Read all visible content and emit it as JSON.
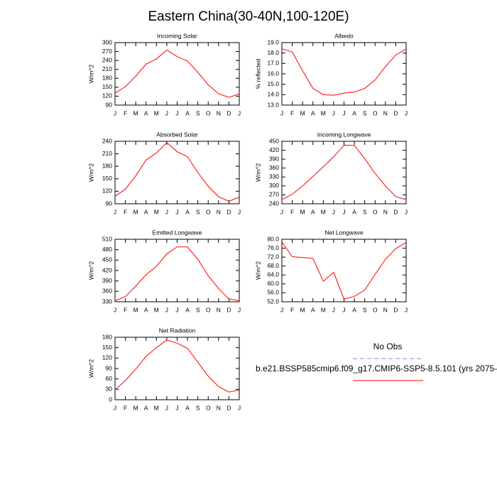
{
  "title": "Eastern China(30-40N,100-120E)",
  "chart_data": [
    {
      "type": "line",
      "title": "Incoming Solar",
      "ylabel": "W/m^2",
      "color": "#ff0000",
      "categories": [
        "J",
        "F",
        "M",
        "A",
        "M",
        "J",
        "J",
        "A",
        "S",
        "O",
        "N",
        "D",
        "J"
      ],
      "values": [
        130,
        152,
        187,
        228,
        245,
        275,
        253,
        238,
        200,
        158,
        128,
        116,
        128
      ],
      "ylim": [
        90,
        300
      ],
      "yticks": [
        90,
        120,
        150,
        180,
        210,
        240,
        270,
        300
      ]
    },
    {
      "type": "line",
      "title": "Albedo",
      "ylabel": "% reflected",
      "color": "#ff0000",
      "categories": [
        "J",
        "F",
        "M",
        "A",
        "M",
        "J",
        "J",
        "A",
        "S",
        "O",
        "N",
        "D",
        "J"
      ],
      "values": [
        18.4,
        18.1,
        16.3,
        14.6,
        14.0,
        13.95,
        14.15,
        14.25,
        14.6,
        15.4,
        16.7,
        17.8,
        18.4
      ],
      "ylim": [
        13,
        19
      ],
      "yticks": [
        {
          "value": 13,
          "label": "13.0"
        },
        {
          "value": 14,
          "label": "14.0"
        },
        {
          "value": 15,
          "label": "15.0"
        },
        {
          "value": 16,
          "label": "16.0"
        },
        {
          "value": 17,
          "label": "17.0"
        },
        {
          "value": 18,
          "label": "18.0"
        },
        {
          "value": 19,
          "label": "19.0"
        }
      ]
    },
    {
      "type": "line",
      "title": "Absorbed Solar",
      "ylabel": "W/m^2",
      "color": "#ff0000",
      "categories": [
        "J",
        "F",
        "M",
        "A",
        "M",
        "J",
        "J",
        "A",
        "S",
        "O",
        "N",
        "D",
        "J"
      ],
      "values": [
        108,
        125,
        157,
        195,
        212,
        237,
        215,
        203,
        165,
        132,
        107,
        96,
        106
      ],
      "ylim": [
        90,
        240
      ],
      "yticks": [
        90,
        120,
        150,
        180,
        210,
        240
      ]
    },
    {
      "type": "line",
      "title": "Incoming Longwave",
      "ylabel": "W/m^2",
      "color": "#ff0000",
      "categories": [
        "J",
        "F",
        "M",
        "A",
        "M",
        "J",
        "J",
        "A",
        "S",
        "O",
        "N",
        "D",
        "J"
      ],
      "values": [
        254,
        272,
        300,
        332,
        364,
        398,
        437,
        436,
        392,
        342,
        300,
        264,
        254
      ],
      "ylim": [
        240,
        450
      ],
      "yticks": [
        240,
        270,
        300,
        330,
        360,
        390,
        420,
        450
      ]
    },
    {
      "type": "line",
      "title": "Emitted Longwave",
      "ylabel": "W/m^2",
      "color": "#ff0000",
      "categories": [
        "J",
        "F",
        "M",
        "A",
        "M",
        "J",
        "J",
        "A",
        "S",
        "O",
        "N",
        "D",
        "J"
      ],
      "values": [
        333,
        345,
        375,
        408,
        432,
        468,
        488,
        488,
        452,
        405,
        368,
        338,
        333
      ],
      "ylim": [
        330,
        510
      ],
      "yticks": [
        330,
        360,
        390,
        420,
        450,
        480,
        510
      ]
    },
    {
      "type": "line",
      "title": "Net Longwave",
      "ylabel": "W/m^2",
      "color": "#ff0000",
      "categories": [
        "J",
        "F",
        "M",
        "A",
        "M",
        "J",
        "J",
        "A",
        "S",
        "O",
        "N",
        "D",
        "J"
      ],
      "values": [
        78.8,
        72.2,
        71.8,
        71.4,
        61.2,
        65.2,
        53.2,
        54.4,
        57.2,
        64.2,
        71.0,
        75.8,
        78.6
      ],
      "ylim": [
        52,
        80
      ],
      "yticks": [
        {
          "value": 52,
          "label": "52.0"
        },
        {
          "value": 56,
          "label": "56.0"
        },
        {
          "value": 60,
          "label": "60.0"
        },
        {
          "value": 64,
          "label": "64.0"
        },
        {
          "value": 68,
          "label": "68.0"
        },
        {
          "value": 72,
          "label": "72.0"
        },
        {
          "value": 76,
          "label": "76.0"
        },
        {
          "value": 80,
          "label": "80.0"
        }
      ]
    },
    {
      "type": "line",
      "title": "Net Radiation",
      "ylabel": "W/m^2",
      "color": "#ff0000",
      "categories": [
        "J",
        "F",
        "M",
        "A",
        "M",
        "J",
        "J",
        "A",
        "S",
        "O",
        "N",
        "D",
        "J"
      ],
      "values": [
        28,
        55,
        88,
        125,
        150,
        172,
        163,
        148,
        108,
        68,
        38,
        22,
        28
      ],
      "ylim": [
        0,
        180
      ],
      "yticks": [
        0,
        30,
        60,
        90,
        120,
        150,
        180
      ]
    }
  ],
  "legend": [
    {
      "label": "No Obs",
      "color": "#8080ff",
      "dashed": true
    },
    {
      "label": "b.e21.BSSP585cmip6.f09_g17.CMIP6-SSP5-8.5.101 (yrs 2075-",
      "color": "#ff0000",
      "dashed": false
    }
  ]
}
